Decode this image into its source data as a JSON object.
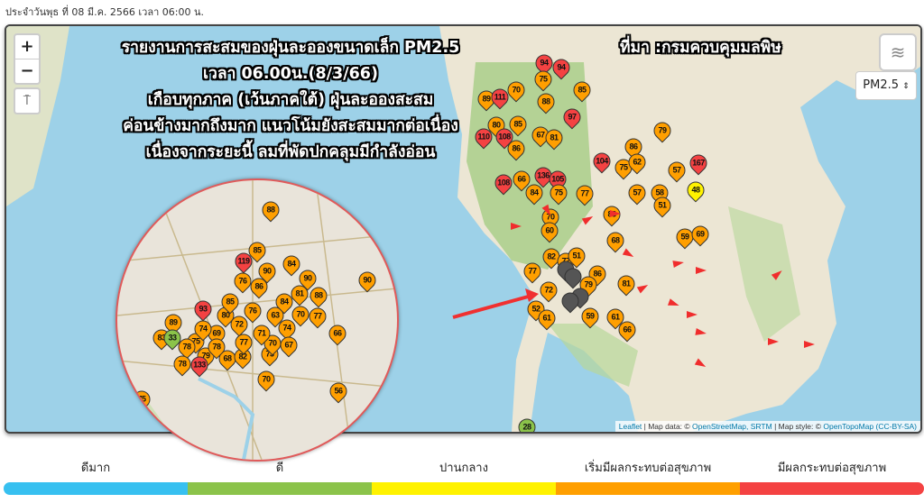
{
  "date_line": "ประจำวันพุธ ที่ 08 มี.ค. 2566 เวลา 06:00 น.",
  "map": {
    "title_lines": [
      "รายงานการสะสมของฝุ่นละอองขนาดเล็ก PM2.5",
      "เวลา 06.00น.(8/3/66)",
      "เกือบทุกภาค (เว้นภาคใต้) ฝุ่นละอองสะสม",
      "ค่อนข้างมากถึงมาก แนวโน้มยังสะสมมากต่อเนื่อง",
      "เนื่องจากระยะนี้ ลมที่พัดปกคลุมมีกำลังอ่อน"
    ],
    "source": "ที่มา :กรมควบคุมมลพิษ",
    "zoom_in": "+",
    "zoom_out": "−",
    "locate_icon": "person-location-icon",
    "layers_icon": "layers-icon",
    "pollutant_select": "PM2.5",
    "attribution": {
      "leaflet": "Leaflet",
      "t1": " | Map data: © ",
      "osm": "OpenStreetMap, SRTM",
      "t2": " | Map style: © ",
      "otm": "OpenTopoMap",
      "lic": "(CC-BY-SA)"
    },
    "stations": [
      94,
      94,
      75,
      85,
      89,
      111,
      70,
      88,
      97,
      80,
      85,
      110,
      108,
      67,
      81,
      86,
      79,
      86,
      104,
      75,
      62,
      57,
      167,
      136,
      105,
      108,
      66,
      84,
      75,
      77,
      57,
      58,
      48,
      51,
      70,
      83,
      60,
      68,
      59,
      69,
      82,
      77,
      51,
      77,
      86,
      79,
      81,
      72,
      52,
      61,
      59,
      61,
      66,
      28
    ],
    "inset_stations": [
      88,
      85,
      119,
      90,
      84,
      76,
      86,
      90,
      90,
      93,
      81,
      88,
      70,
      77,
      74,
      66,
      89,
      83,
      33,
      75,
      78,
      79,
      68,
      82,
      73,
      70,
      67,
      78,
      133,
      70,
      56,
      75,
      80,
      72,
      76,
      69,
      63,
      85,
      71,
      77,
      84,
      78,
      74
    ]
  },
  "legend": [
    {
      "label": "ดีมาก",
      "color": "#37c0f0"
    },
    {
      "label": "ดี",
      "color": "#8bc34a"
    },
    {
      "label": "ปานกลาง",
      "color": "#fff200"
    },
    {
      "label": "เริ่มมีผลกระทบต่อสุขภาพ",
      "color": "#ff9f00"
    },
    {
      "label": "มีผลกระทบต่อสุขภาพ",
      "color": "#f44242"
    }
  ]
}
